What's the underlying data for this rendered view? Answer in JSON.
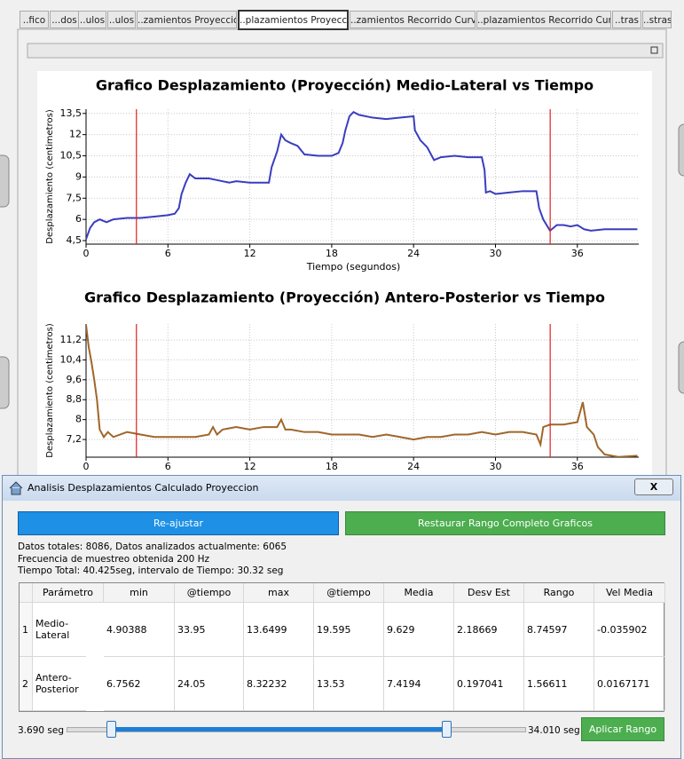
{
  "tabs": [
    "..fico",
    "...dos",
    "..ulos",
    "..ulos",
    "..zamientos Proyección",
    "..plazamientos Proyecciór",
    "..zamientos Recorrido Curvo",
    "..plazamientos Recorrido Curvo",
    "..tras",
    "..stras"
  ],
  "chart_data": [
    {
      "type": "line",
      "title": "Grafico Desplazamiento (Proyección) Medio-Lateral vs Tiempo",
      "x_label": "Tiempo (segundos)",
      "y_label": "Desplazamiento (centimetros)",
      "color": "#3a3dbf",
      "grid": true,
      "x": [
        0,
        0.3,
        0.6,
        1,
        1.5,
        2,
        3,
        4,
        5,
        6,
        6.5,
        6.8,
        7,
        7.3,
        7.6,
        8,
        9,
        9.5,
        10,
        10.5,
        11,
        12,
        13,
        13.4,
        13.6,
        14,
        14.3,
        14.6,
        15,
        15.5,
        16,
        17,
        18,
        18.5,
        18.8,
        19,
        19.3,
        19.6,
        20,
        21,
        22,
        23,
        24,
        24.1,
        24.5,
        25,
        25.5,
        26,
        27,
        28,
        29,
        29.2,
        29.3,
        29.6,
        30,
        31,
        32,
        33,
        33.2,
        33.5,
        34,
        34.5,
        35,
        35.5,
        36,
        36.5,
        37,
        38,
        39,
        40.4
      ],
      "values": [
        4.6,
        5.4,
        5.8,
        6.0,
        5.8,
        6.0,
        6.1,
        6.1,
        6.2,
        6.3,
        6.4,
        6.8,
        7.8,
        8.6,
        9.2,
        8.9,
        8.9,
        8.8,
        8.7,
        8.6,
        8.7,
        8.6,
        8.6,
        8.6,
        9.7,
        10.8,
        12.0,
        11.6,
        11.4,
        11.2,
        10.6,
        10.5,
        10.5,
        10.7,
        11.4,
        12.3,
        13.3,
        13.6,
        13.4,
        13.2,
        13.1,
        13.2,
        13.3,
        12.3,
        11.6,
        11.1,
        10.2,
        10.4,
        10.5,
        10.4,
        10.4,
        9.5,
        7.9,
        8.0,
        7.8,
        7.9,
        8.0,
        8.0,
        6.8,
        6.0,
        5.2,
        5.6,
        5.6,
        5.5,
        5.6,
        5.3,
        5.2,
        5.3,
        5.3,
        5.3
      ],
      "xlim": [
        0,
        40.5
      ],
      "ylim": [
        4.25,
        13.8
      ],
      "xticks": [
        0,
        6,
        12,
        18,
        24,
        30,
        36
      ],
      "yticks": [
        {
          "value": 4.5,
          "label": "4,5"
        },
        6,
        {
          "value": 7.5,
          "label": "7,5"
        },
        9,
        {
          "value": 10.5,
          "label": "10,5"
        },
        12,
        {
          "value": 13.5,
          "label": "13,5"
        }
      ],
      "vlines": [
        3.69,
        34.01
      ],
      "vline_color": "#e02020"
    },
    {
      "type": "line",
      "title": "Grafico Desplazamiento (Proyección) Antero-Posterior vs Tiempo",
      "x_label": "Tiempo (segundos)",
      "y_label": "Desplazamiento (centimetros)",
      "color": "#a0662a",
      "grid": true,
      "x": [
        0,
        0.2,
        0.4,
        0.6,
        0.8,
        1,
        1.3,
        1.6,
        2,
        3,
        4,
        5,
        6,
        7,
        8,
        9,
        9.3,
        9.6,
        10,
        11,
        12,
        13,
        14,
        14.3,
        14.6,
        15,
        16,
        17,
        18,
        19,
        20,
        21,
        22,
        23,
        24,
        25,
        26,
        27,
        28,
        29,
        30,
        31,
        32,
        33,
        33.3,
        33.5,
        34,
        35,
        36,
        36.4,
        36.7,
        37.2,
        37.5,
        38,
        39,
        40.4
      ],
      "values": [
        11.8,
        10.9,
        10.3,
        9.6,
        8.8,
        7.6,
        7.3,
        7.5,
        7.3,
        7.5,
        7.4,
        7.3,
        7.3,
        7.3,
        7.3,
        7.4,
        7.7,
        7.4,
        7.6,
        7.7,
        7.6,
        7.7,
        7.7,
        8.0,
        7.6,
        7.6,
        7.5,
        7.5,
        7.4,
        7.4,
        7.4,
        7.3,
        7.4,
        7.3,
        7.2,
        7.3,
        7.3,
        7.4,
        7.4,
        7.5,
        7.4,
        7.5,
        7.5,
        7.4,
        7.0,
        7.7,
        7.8,
        7.8,
        7.9,
        8.7,
        7.7,
        7.4,
        6.9,
        6.6,
        6.5,
        6.55
      ],
      "xlim": [
        0,
        40.5
      ],
      "ylim": [
        6.49,
        11.84
      ],
      "xticks": [
        0,
        6,
        12,
        18,
        24,
        30,
        36
      ],
      "yticks": [
        {
          "value": 7.2,
          "label": "7,2"
        },
        8,
        {
          "value": 8.8,
          "label": "8,8"
        },
        {
          "value": 9.6,
          "label": "9,6"
        },
        {
          "value": 10.4,
          "label": "10,4"
        },
        {
          "value": 11.2,
          "label": "11,2"
        }
      ],
      "vlines": [
        3.69,
        34.01
      ],
      "vline_color": "#e02020"
    }
  ],
  "dialog": {
    "title": "Analisis Desplazamientos Calculado Proyeccion",
    "close": "X",
    "button_readjust": "Re-ajustar",
    "button_restore": "Restaurar Rango Completo Graficos",
    "info": [
      "Datos totales: 8086, Datos analizados actualmente: 6065",
      "Frecuencia de muestreo obtenida 200 Hz",
      "Tiempo Total: 40.425seg, intervalo de Tiempo: 30.32 seg"
    ],
    "table": {
      "header": [
        "Parámetro",
        "min",
        "@tiempo",
        "max",
        "@tiempo",
        "Media",
        "Desv Est",
        "Rango",
        "Vel Media"
      ],
      "rows": [
        {
          "index": "1",
          "cells": [
            "Medio-Lateral",
            "4.90388",
            "33.95",
            "13.6499",
            "19.595",
            "9.629",
            "2.18669",
            "8.74597",
            "-0.035902"
          ]
        },
        {
          "index": "2",
          "cells": [
            "Antero-Posterior",
            "6.7562",
            "24.05",
            "8.32232",
            "13.53",
            "7.4194",
            "0.197041",
            "1.56611",
            "0.0167171"
          ]
        }
      ]
    },
    "range_start": "3.690 seg",
    "range_end": "34.010 seg",
    "button_apply": "Aplicar Rango"
  }
}
